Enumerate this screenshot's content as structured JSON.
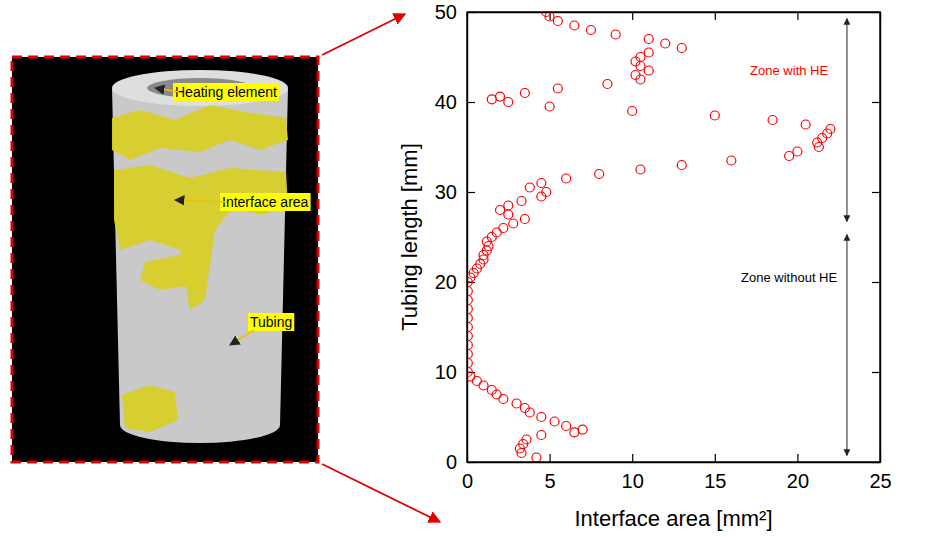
{
  "chart_data": {
    "type": "scatter",
    "x_label": "Interface area [mm²]",
    "y_label": "Tubing length [mm]",
    "xlim": [
      0,
      25
    ],
    "xticks": [
      0,
      5,
      10,
      15,
      20,
      25
    ],
    "ylim": [
      0,
      50
    ],
    "yticks": [
      0,
      10,
      20,
      30,
      40,
      50
    ],
    "grid": false,
    "annotations": [
      {
        "text": "Zone with HE",
        "color": "#ff0000"
      },
      {
        "text": "Zone without HE",
        "color": "#000000"
      }
    ],
    "series": [
      {
        "color": "#ff0000",
        "marker": "circle",
        "x": [
          4.2,
          3.3,
          3.2,
          3.4,
          3.6,
          4.5,
          6.5,
          7.0,
          6.0,
          5.3,
          4.5,
          3.8,
          3.5,
          3.0,
          2.2,
          1.8,
          1.5,
          1.0,
          0.6,
          0.2,
          0.05,
          0.05,
          0.05,
          0.05,
          0.05,
          0.05,
          0.05,
          0.05,
          0.05,
          0.05,
          0.05,
          0.2,
          0.4,
          0.6,
          0.8,
          1.0,
          1.0,
          1.2,
          1.3,
          1.2,
          1.5,
          1.8,
          2.2,
          2.8,
          3.5,
          2.5,
          2.0,
          2.5,
          3.3,
          4.5,
          4.8,
          3.8,
          4.5,
          6.0,
          8.0,
          10.5,
          13.0,
          16.0,
          19.5,
          20.0,
          21.3,
          21.2,
          21.5,
          21.8,
          22.0,
          20.5,
          18.5,
          15.0,
          10.0,
          5.0,
          2.5,
          1.5,
          2.0,
          3.5,
          5.5,
          8.5,
          10.5,
          10.2,
          11.0,
          10.5,
          10.2,
          10.5,
          11.0,
          13.0,
          12.0,
          11.0,
          9.0,
          7.5,
          6.5,
          5.5,
          5.0,
          4.8
        ],
        "values": [
          0.5,
          1,
          1.5,
          2,
          2.5,
          3,
          3.3,
          3.6,
          4,
          4.5,
          5,
          5.5,
          6,
          6.5,
          7,
          7.5,
          8,
          8.5,
          9,
          9.5,
          10,
          11,
          12,
          13,
          14,
          15,
          16,
          17,
          18,
          19,
          20,
          20.5,
          21,
          21.5,
          22,
          22.5,
          23,
          23.5,
          24,
          24.5,
          25,
          25.5,
          26,
          26.5,
          27,
          27.5,
          28,
          28.5,
          29,
          29.5,
          30,
          30.5,
          31,
          31.5,
          32,
          32.5,
          33,
          33.5,
          34,
          34.5,
          35,
          35.5,
          36,
          36.5,
          37,
          37.5,
          38,
          38.5,
          39,
          39.5,
          40,
          40.3,
          40.6,
          41,
          41.5,
          42,
          42.5,
          43,
          43.5,
          44,
          44.5,
          45,
          45.5,
          46,
          46.5,
          47,
          47.5,
          48,
          48.5,
          49,
          49.5,
          50
        ]
      }
    ]
  },
  "figure": {
    "labels": [
      "Heating element",
      "Interface area",
      "Tubing"
    ]
  }
}
